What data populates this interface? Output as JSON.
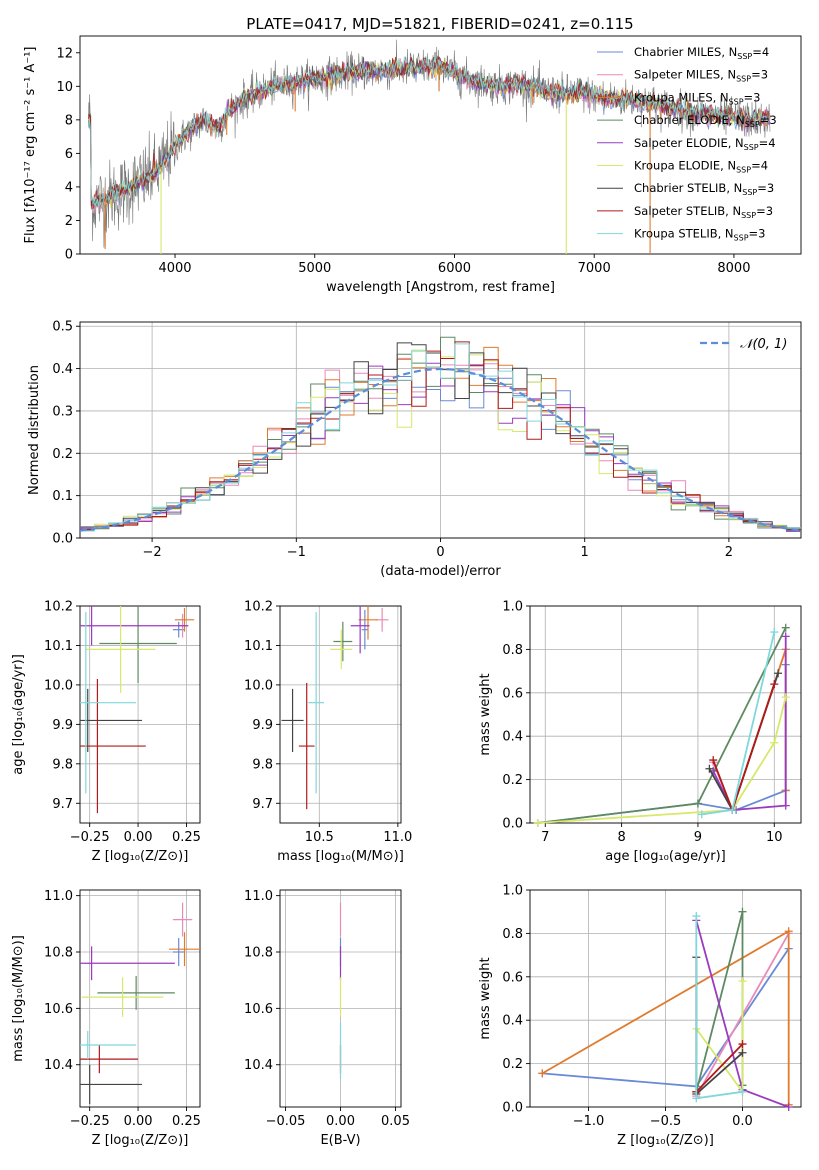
{
  "figure_title": "PLATE=0417, MJD=51821, FIBERID=0241, z=0.115",
  "colors": {
    "Chabrier MILES": "#6a8ad6",
    "Salpeter MILES": "#e98ab8",
    "Kroupa MILES": "#e07b2e",
    "Chabrier ELODIE": "#5e8a62",
    "Salpeter ELODIE": "#9a3bbf",
    "Kroupa ELODIE": "#d7e86a",
    "Chabrier STELIB": "#444444",
    "Salpeter STELIB": "#b01a1a",
    "Kroupa STELIB": "#7fd8dc"
  },
  "chart_data": [
    {
      "id": "spectrum",
      "type": "line",
      "title": "",
      "xlabel": "wavelength [Angstrom, rest frame]",
      "ylabel": "Flux [fλ10⁻¹⁷ erg cm⁻² s⁻¹ A⁻¹]",
      "xlim": [
        3320,
        8480
      ],
      "ylim": [
        0,
        13
      ],
      "xticks": [
        "4000",
        "5000",
        "6000",
        "7000",
        "8000"
      ],
      "yticks": [
        "0",
        "2",
        "4",
        "6",
        "8",
        "10",
        "12"
      ],
      "legend_position": "upper right",
      "legend": [
        {
          "label": "Chabrier MILES, N",
          "sub": "SSP",
          "tail": "=4"
        },
        {
          "label": "Salpeter MILES, N",
          "sub": "SSP",
          "tail": "=3"
        },
        {
          "label": "Kroupa MILES, N",
          "sub": "SSP",
          "tail": "=3"
        },
        {
          "label": "Chabrier ELODIE, N",
          "sub": "SSP",
          "tail": "=3"
        },
        {
          "label": "Salpeter ELODIE, N",
          "sub": "SSP",
          "tail": "=4"
        },
        {
          "label": "Kroupa ELODIE, N",
          "sub": "SSP",
          "tail": "=4"
        },
        {
          "label": "Chabrier STELIB, N",
          "sub": "SSP",
          "tail": "=3"
        },
        {
          "label": "Salpeter STELIB, N",
          "sub": "SSP",
          "tail": "=3"
        },
        {
          "label": "Kroupa STELIB, N",
          "sub": "SSP",
          "tail": "=3"
        }
      ],
      "continuum_x": [
        3400,
        3500,
        3600,
        3700,
        3800,
        3900,
        4000,
        4100,
        4200,
        4300,
        4400,
        4500,
        4700,
        4900,
        5100,
        5300,
        5500,
        5700,
        5900,
        6100,
        6300,
        6500,
        6700,
        6900,
        7100,
        7300,
        7500,
        7700,
        7900,
        8100,
        8250
      ],
      "continuum_y": [
        3.0,
        3.3,
        3.6,
        4.1,
        4.5,
        5.2,
        6.5,
        7.3,
        8.0,
        7.5,
        8.6,
        9.3,
        10.0,
        10.3,
        10.6,
        10.9,
        10.9,
        11.1,
        11.2,
        10.4,
        10.0,
        10.1,
        9.6,
        9.6,
        9.3,
        9.2,
        8.8,
        8.4,
        8.2,
        8.0,
        8.0
      ],
      "data_x_range": [
        3380,
        8260
      ],
      "dips": [
        {
          "x": 3500,
          "y": 0.3,
          "series": "Kroupa MILES"
        },
        {
          "x": 3900,
          "y": 0.0,
          "series": "Kroupa ELODIE"
        },
        {
          "x": 4370,
          "y": 7.1,
          "series": "Kroupa MILES"
        },
        {
          "x": 4860,
          "y": 8.5,
          "series": "Kroupa MILES"
        },
        {
          "x": 5890,
          "y": 9.7,
          "series": "Kroupa MILES"
        },
        {
          "x": 6560,
          "y": 8.9,
          "series": "Kroupa MILES"
        },
        {
          "x": 6800,
          "y": 0.0,
          "series": "Kroupa ELODIE"
        },
        {
          "x": 7400,
          "y": 0.0,
          "series": "Kroupa MILES"
        }
      ]
    },
    {
      "id": "residuals",
      "type": "histogram",
      "title": "",
      "xlabel": "(data-model)/error",
      "ylabel": "Normed distribution",
      "xlim": [
        -2.5,
        2.5
      ],
      "ylim": [
        0,
        0.51
      ],
      "xticks": [
        "−2",
        "−1",
        "0",
        "1",
        "2"
      ],
      "yticks": [
        "0.0",
        "0.1",
        "0.2",
        "0.3",
        "0.4",
        "0.5"
      ],
      "bin_width": 0.1,
      "reference": {
        "label": "𝒩(0, 1)",
        "type": "normal",
        "mean": 0,
        "sigma": 1
      },
      "legend_position": "upper right"
    },
    {
      "id": "age_vs_Z",
      "type": "errorbar",
      "xlabel": "Z [log₁₀(Z/Z⊙)]",
      "ylabel": "age  [log₁₀(age/yr)]",
      "xlim": [
        -0.3,
        0.32
      ],
      "ylim": [
        9.65,
        10.2
      ],
      "xticks": [
        "−0.25",
        "0.00",
        "0.25"
      ],
      "yticks": [
        "9.7",
        "9.8",
        "9.9",
        "10.0",
        "10.1",
        "10.2"
      ],
      "points": [
        {
          "series": "Chabrier MILES",
          "x": 0.21,
          "y": 10.14,
          "xerr": 0.03,
          "yerr": 0.02
        },
        {
          "series": "Salpeter MILES",
          "x": 0.23,
          "y": 10.15,
          "xerr": 0.02,
          "yerr": 0.03
        },
        {
          "series": "Kroupa MILES",
          "x": 0.24,
          "y": 10.165,
          "xerr": 0.05,
          "yerr": 0.03
        },
        {
          "series": "Chabrier ELODIE",
          "x": 0.0,
          "y": 10.105,
          "xerr": 0.2,
          "yerr": 0.1
        },
        {
          "series": "Salpeter ELODIE",
          "x": -0.24,
          "y": 10.15,
          "xerr": 0.5,
          "yerr": 0.05
        },
        {
          "series": "Kroupa ELODIE",
          "x": -0.09,
          "y": 10.09,
          "xerr": 0.18,
          "yerr": 0.11
        },
        {
          "series": "Chabrier STELIB",
          "x": -0.26,
          "y": 9.91,
          "xerr": 0.28,
          "yerr": 0.08
        },
        {
          "series": "Salpeter STELIB",
          "x": -0.21,
          "y": 9.845,
          "xerr": 0.25,
          "yerr": 0.17
        },
        {
          "series": "Kroupa STELIB",
          "x": -0.27,
          "y": 9.955,
          "xerr": 0.26,
          "yerr": 0.23
        }
      ]
    },
    {
      "id": "age_vs_mass",
      "type": "errorbar",
      "xlabel": "mass [log₁₀(M/M⊙)]",
      "ylabel": "",
      "xlim": [
        10.25,
        11.02
      ],
      "ylim": [
        9.65,
        10.2
      ],
      "xticks": [
        "10.5",
        "11.0"
      ],
      "yticks": [
        "9.7",
        "9.8",
        "9.9",
        "10.0",
        "10.1",
        "10.2"
      ],
      "points": [
        {
          "series": "Chabrier MILES",
          "x": 10.79,
          "y": 10.14,
          "xerr": 0.02,
          "yerr": 0.05
        },
        {
          "series": "Salpeter MILES",
          "x": 10.9,
          "y": 10.165,
          "xerr": 0.04,
          "yerr": 0.03
        },
        {
          "series": "Kroupa MILES",
          "x": 10.81,
          "y": 10.165,
          "xerr": 0.06,
          "yerr": 0.05
        },
        {
          "series": "Chabrier ELODIE",
          "x": 10.65,
          "y": 10.11,
          "xerr": 0.06,
          "yerr": 0.05
        },
        {
          "series": "Salpeter ELODIE",
          "x": 10.76,
          "y": 10.15,
          "xerr": 0.06,
          "yerr": 0.07
        },
        {
          "series": "Kroupa ELODIE",
          "x": 10.64,
          "y": 10.09,
          "xerr": 0.07,
          "yerr": 0.05
        },
        {
          "series": "Chabrier STELIB",
          "x": 10.33,
          "y": 9.91,
          "xerr": 0.07,
          "yerr": 0.08
        },
        {
          "series": "Salpeter STELIB",
          "x": 10.42,
          "y": 9.845,
          "xerr": 0.05,
          "yerr": 0.16
        },
        {
          "series": "Kroupa STELIB",
          "x": 10.48,
          "y": 9.955,
          "xerr": 0.05,
          "yerr": 0.23
        }
      ]
    },
    {
      "id": "massweight_vs_age",
      "type": "line",
      "xlabel": "age  [log₁₀(age/yr)]",
      "ylabel": "mass weight",
      "xlim": [
        6.8,
        10.35
      ],
      "ylim": [
        0,
        1
      ],
      "xticks": [
        "7",
        "8",
        "9",
        "10"
      ],
      "yticks": [
        "0.0",
        "0.2",
        "0.4",
        "0.6",
        "0.8",
        "1.0"
      ],
      "series": [
        {
          "name": "Chabrier MILES",
          "x": [
            6.9,
            9.0,
            9.5,
            10.15,
            10.15
          ],
          "y": [
            0.0,
            0.09,
            0.06,
            0.15,
            0.73
          ]
        },
        {
          "name": "Salpeter MILES",
          "x": [
            9.2,
            9.45,
            10.15
          ],
          "y": [
            0.28,
            0.06,
            0.8
          ]
        },
        {
          "name": "Kroupa MILES",
          "x": [
            9.45,
            10.15,
            10.15
          ],
          "y": [
            0.06,
            0.8,
            0.15
          ]
        },
        {
          "name": "Chabrier ELODIE",
          "x": [
            6.9,
            9.0,
            10.15
          ],
          "y": [
            0.0,
            0.09,
            0.9
          ]
        },
        {
          "name": "Salpeter ELODIE",
          "x": [
            9.2,
            9.45,
            10.15,
            10.15
          ],
          "y": [
            0.24,
            0.06,
            0.08,
            0.86
          ]
        },
        {
          "name": "Kroupa ELODIE",
          "x": [
            6.9,
            9.45,
            10.0,
            10.15
          ],
          "y": [
            0.0,
            0.06,
            0.37,
            0.58
          ]
        },
        {
          "name": "Chabrier STELIB",
          "x": [
            9.15,
            9.45,
            10.05
          ],
          "y": [
            0.25,
            0.06,
            0.69
          ]
        },
        {
          "name": "Salpeter STELIB",
          "x": [
            9.2,
            9.45,
            10.0
          ],
          "y": [
            0.29,
            0.06,
            0.64
          ]
        },
        {
          "name": "Kroupa STELIB",
          "x": [
            9.05,
            9.45,
            10.0
          ],
          "y": [
            0.04,
            0.06,
            0.88
          ]
        }
      ]
    },
    {
      "id": "mass_vs_Z",
      "type": "errorbar",
      "xlabel": "Z [log₁₀(Z/Z⊙)]",
      "ylabel": "mass [log₁₀(M/M⊙)]",
      "xlim": [
        -0.3,
        0.32
      ],
      "ylim": [
        10.25,
        11.02
      ],
      "xticks": [
        "−0.25",
        "0.00",
        "0.25"
      ],
      "yticks": [
        "10.4",
        "10.6",
        "10.8",
        "11.0"
      ],
      "points": [
        {
          "series": "Chabrier MILES",
          "x": 0.21,
          "y": 10.8,
          "xerr": 0.03,
          "yerr": 0.05
        },
        {
          "series": "Salpeter MILES",
          "x": 0.23,
          "y": 10.915,
          "xerr": 0.05,
          "yerr": 0.06
        },
        {
          "series": "Kroupa MILES",
          "x": 0.24,
          "y": 10.81,
          "xerr": 0.08,
          "yerr": 0.06
        },
        {
          "series": "Chabrier ELODIE",
          "x": -0.01,
          "y": 10.655,
          "xerr": 0.2,
          "yerr": 0.06
        },
        {
          "series": "Salpeter ELODIE",
          "x": -0.24,
          "y": 10.76,
          "xerr": 0.43,
          "yerr": 0.06
        },
        {
          "series": "Kroupa ELODIE",
          "x": -0.08,
          "y": 10.64,
          "xerr": 0.21,
          "yerr": 0.07
        },
        {
          "series": "Chabrier STELIB",
          "x": -0.25,
          "y": 10.33,
          "xerr": 0.27,
          "yerr": 0.07
        },
        {
          "series": "Salpeter STELIB",
          "x": -0.2,
          "y": 10.42,
          "xerr": 0.2,
          "yerr": 0.05
        },
        {
          "series": "Kroupa STELIB",
          "x": -0.26,
          "y": 10.47,
          "xerr": 0.25,
          "yerr": 0.05
        }
      ]
    },
    {
      "id": "mass_vs_ebv",
      "type": "errorbar",
      "xlabel": "E(B-V)",
      "ylabel": "",
      "xlim": [
        -0.055,
        0.055
      ],
      "ylim": [
        10.25,
        11.02
      ],
      "xticks": [
        "−0.05",
        "0.00",
        "0.05"
      ],
      "yticks": [
        "10.4",
        "10.6",
        "10.8",
        "11.0"
      ],
      "points": [
        {
          "series": "Salpeter MILES",
          "x": 0.0,
          "y": 10.915,
          "xerr": 0.0,
          "yerr": 0.06
        },
        {
          "series": "Chabrier MILES",
          "x": 0.0,
          "y": 10.8,
          "xerr": 0.0,
          "yerr": 0.05
        },
        {
          "series": "Salpeter ELODIE",
          "x": 0.0,
          "y": 10.76,
          "xerr": 0.0,
          "yerr": 0.06
        },
        {
          "series": "Kroupa ELODIE",
          "x": 0.0,
          "y": 10.64,
          "xerr": 0.0,
          "yerr": 0.07
        },
        {
          "series": "Salpeter STELIB",
          "x": 0.0,
          "y": 10.42,
          "xerr": 0.0,
          "yerr": 0.05
        },
        {
          "series": "Kroupa STELIB",
          "x": 0.0,
          "y": 10.45,
          "xerr": 0.0,
          "yerr": 0.1
        }
      ]
    },
    {
      "id": "massweight_vs_Z",
      "type": "line",
      "xlabel": "Z [log₁₀(Z/Z⊙)]",
      "ylabel": "mass weight",
      "xlim": [
        -1.38,
        0.38
      ],
      "ylim": [
        0,
        1
      ],
      "xticks": [
        "−1.0",
        "−0.5",
        "0.0"
      ],
      "yticks": [
        "0.0",
        "0.2",
        "0.4",
        "0.6",
        "0.8",
        "1.0"
      ],
      "series": [
        {
          "name": "Chabrier MILES",
          "x": [
            -1.3,
            -0.3,
            0.3
          ],
          "y": [
            0.155,
            0.095,
            0.73
          ]
        },
        {
          "name": "Salpeter MILES",
          "x": [
            -0.3,
            0.3
          ],
          "y": [
            0.05,
            0.8
          ]
        },
        {
          "name": "Kroupa MILES",
          "x": [
            -1.3,
            0.3,
            0.3
          ],
          "y": [
            0.155,
            0.81,
            0.01
          ]
        },
        {
          "name": "Chabrier ELODIE",
          "x": [
            -0.3,
            0.0,
            0.0
          ],
          "y": [
            0.07,
            0.9,
            0.1
          ]
        },
        {
          "name": "Salpeter ELODIE",
          "x": [
            -0.3,
            0.0,
            0.3
          ],
          "y": [
            0.86,
            0.08,
            0.0
          ]
        },
        {
          "name": "Kroupa ELODIE",
          "x": [
            -0.3,
            0.0,
            0.0
          ],
          "y": [
            0.36,
            0.07,
            0.58
          ]
        },
        {
          "name": "Chabrier STELIB",
          "x": [
            -0.3,
            -0.3,
            0.0
          ],
          "y": [
            0.69,
            0.06,
            0.25
          ]
        },
        {
          "name": "Salpeter STELIB",
          "x": [
            -0.3,
            0.0
          ],
          "y": [
            0.07,
            0.29
          ]
        },
        {
          "name": "Kroupa STELIB",
          "x": [
            -0.3,
            -0.3,
            0.0
          ],
          "y": [
            0.88,
            0.04,
            0.07
          ]
        }
      ]
    }
  ]
}
